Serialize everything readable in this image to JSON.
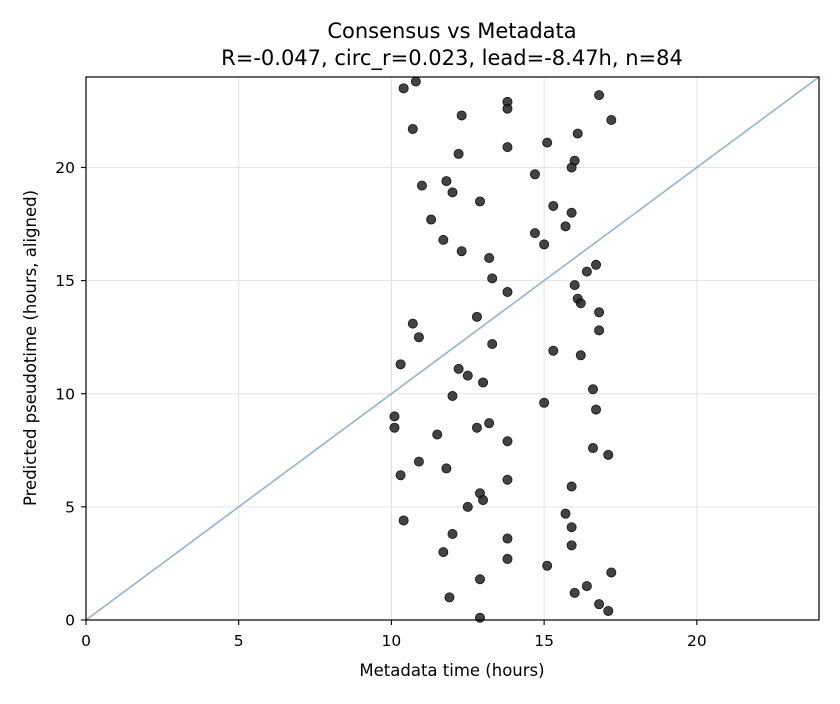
{
  "chart_data": {
    "type": "scatter",
    "title": "Consensus vs Metadata",
    "subtitle": "R=-0.047, circ_r=0.023, lead=-8.47h, n=84",
    "xlabel": "Metadata time (hours)",
    "ylabel": "Predicted pseudotime (hours, aligned)",
    "xlim": [
      0,
      24
    ],
    "ylim": [
      0,
      24
    ],
    "xticks": [
      0,
      5,
      10,
      15,
      20
    ],
    "yticks": [
      0,
      5,
      10,
      15,
      20
    ],
    "grid": true,
    "reference_line": {
      "from": [
        0,
        0
      ],
      "to": [
        24,
        24
      ],
      "color": "#8fb5d1"
    },
    "point_color": "#222222",
    "points": [
      {
        "x": 10.4,
        "y": 23.5
      },
      {
        "x": 10.8,
        "y": 23.8
      },
      {
        "x": 10.7,
        "y": 21.7
      },
      {
        "x": 12.3,
        "y": 22.3
      },
      {
        "x": 13.8,
        "y": 22.9
      },
      {
        "x": 13.8,
        "y": 22.6
      },
      {
        "x": 16.8,
        "y": 23.2
      },
      {
        "x": 17.2,
        "y": 22.1
      },
      {
        "x": 16.1,
        "y": 21.5
      },
      {
        "x": 15.1,
        "y": 21.1
      },
      {
        "x": 13.8,
        "y": 20.9
      },
      {
        "x": 12.2,
        "y": 20.6
      },
      {
        "x": 16.0,
        "y": 20.3
      },
      {
        "x": 15.9,
        "y": 20.0
      },
      {
        "x": 14.7,
        "y": 19.7
      },
      {
        "x": 11.0,
        "y": 19.2
      },
      {
        "x": 11.8,
        "y": 19.4
      },
      {
        "x": 12.0,
        "y": 18.9
      },
      {
        "x": 12.9,
        "y": 18.5
      },
      {
        "x": 15.3,
        "y": 18.3
      },
      {
        "x": 15.9,
        "y": 18.0
      },
      {
        "x": 11.3,
        "y": 17.7
      },
      {
        "x": 15.7,
        "y": 17.4
      },
      {
        "x": 14.7,
        "y": 17.1
      },
      {
        "x": 11.7,
        "y": 16.8
      },
      {
        "x": 15.0,
        "y": 16.6
      },
      {
        "x": 12.3,
        "y": 16.3
      },
      {
        "x": 13.2,
        "y": 16.0
      },
      {
        "x": 16.7,
        "y": 15.7
      },
      {
        "x": 16.4,
        "y": 15.4
      },
      {
        "x": 13.3,
        "y": 15.1
      },
      {
        "x": 16.0,
        "y": 14.8
      },
      {
        "x": 13.8,
        "y": 14.5
      },
      {
        "x": 16.1,
        "y": 14.2
      },
      {
        "x": 16.2,
        "y": 14.0
      },
      {
        "x": 16.8,
        "y": 13.6
      },
      {
        "x": 12.8,
        "y": 13.4
      },
      {
        "x": 10.7,
        "y": 13.1
      },
      {
        "x": 16.8,
        "y": 12.8
      },
      {
        "x": 10.9,
        "y": 12.5
      },
      {
        "x": 13.3,
        "y": 12.2
      },
      {
        "x": 15.3,
        "y": 11.9
      },
      {
        "x": 16.2,
        "y": 11.7
      },
      {
        "x": 10.3,
        "y": 11.3
      },
      {
        "x": 12.2,
        "y": 11.1
      },
      {
        "x": 12.5,
        "y": 10.8
      },
      {
        "x": 13.0,
        "y": 10.5
      },
      {
        "x": 16.6,
        "y": 10.2
      },
      {
        "x": 12.0,
        "y": 9.9
      },
      {
        "x": 15.0,
        "y": 9.6
      },
      {
        "x": 16.7,
        "y": 9.3
      },
      {
        "x": 10.1,
        "y": 9.0
      },
      {
        "x": 13.2,
        "y": 8.7
      },
      {
        "x": 10.1,
        "y": 8.5
      },
      {
        "x": 12.8,
        "y": 8.5
      },
      {
        "x": 11.5,
        "y": 8.2
      },
      {
        "x": 13.8,
        "y": 7.9
      },
      {
        "x": 16.6,
        "y": 7.6
      },
      {
        "x": 17.1,
        "y": 7.3
      },
      {
        "x": 10.9,
        "y": 7.0
      },
      {
        "x": 11.8,
        "y": 6.7
      },
      {
        "x": 10.3,
        "y": 6.4
      },
      {
        "x": 13.8,
        "y": 6.2
      },
      {
        "x": 15.9,
        "y": 5.9
      },
      {
        "x": 12.9,
        "y": 5.6
      },
      {
        "x": 13.0,
        "y": 5.3
      },
      {
        "x": 12.5,
        "y": 5.0
      },
      {
        "x": 15.7,
        "y": 4.7
      },
      {
        "x": 10.4,
        "y": 4.4
      },
      {
        "x": 15.9,
        "y": 4.1
      },
      {
        "x": 12.0,
        "y": 3.8
      },
      {
        "x": 13.8,
        "y": 3.6
      },
      {
        "x": 15.9,
        "y": 3.3
      },
      {
        "x": 11.7,
        "y": 3.0
      },
      {
        "x": 13.8,
        "y": 2.7
      },
      {
        "x": 15.1,
        "y": 2.4
      },
      {
        "x": 17.2,
        "y": 2.1
      },
      {
        "x": 12.9,
        "y": 1.8
      },
      {
        "x": 16.4,
        "y": 1.5
      },
      {
        "x": 16.0,
        "y": 1.2
      },
      {
        "x": 11.9,
        "y": 1.0
      },
      {
        "x": 16.8,
        "y": 0.7
      },
      {
        "x": 17.1,
        "y": 0.4
      },
      {
        "x": 12.9,
        "y": 0.1
      }
    ]
  }
}
